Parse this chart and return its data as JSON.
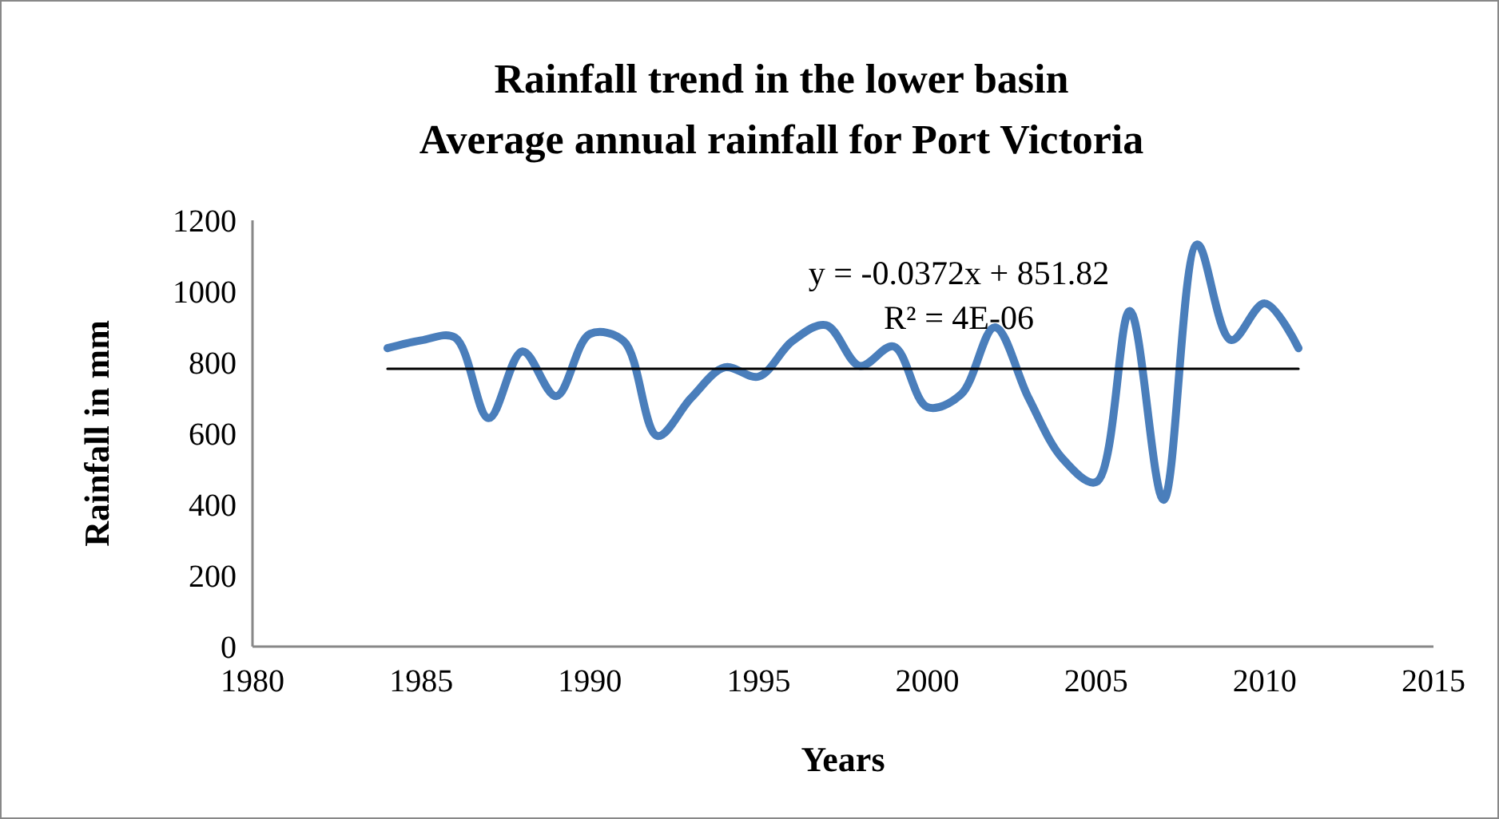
{
  "chart_data": {
    "type": "line",
    "title": "Rainfall trend in the lower basin",
    "subtitle": "Average annual rainfall for Port Victoria",
    "xlabel": "Years",
    "ylabel": "Rainfall in mm",
    "x": [
      1984,
      1985,
      1986,
      1987,
      1988,
      1989,
      1990,
      1991,
      1992,
      1993,
      1994,
      1995,
      1996,
      1997,
      1998,
      1999,
      2000,
      2001,
      2002,
      2003,
      2004,
      2005,
      2006,
      2007,
      2008,
      2009,
      2010,
      2011
    ],
    "series": [
      {
        "color": "#4a7ebb",
        "values": [
          840,
          862,
          870,
          643,
          831,
          705,
          880,
          860,
          593,
          700,
          786,
          760,
          860,
          905,
          790,
          845,
          674,
          710,
          899,
          700,
          530,
          463,
          945,
          413,
          1132,
          863,
          966,
          840
        ]
      },
      {
        "type": "line",
        "color": "#000000",
        "x": [
          1984,
          2011
        ],
        "values": [
          782,
          782
        ]
      }
    ],
    "annotations": [
      "y = -0.0372x + 851.82",
      "R² = 4E-06"
    ],
    "xlim": [
      1980,
      2015
    ],
    "xticks": [
      1980,
      1985,
      1990,
      1995,
      2000,
      2005,
      2010,
      2015
    ],
    "ylim": [
      0,
      1200
    ],
    "yticks": [
      0,
      200,
      400,
      600,
      800,
      1000,
      1200
    ],
    "grid": false,
    "marker": "none",
    "line_style": "solid"
  }
}
